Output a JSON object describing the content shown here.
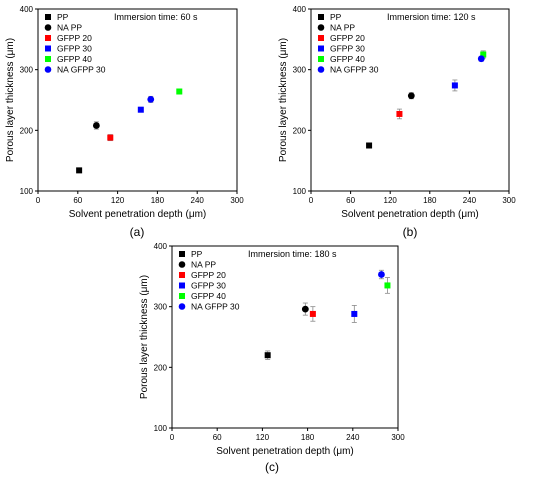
{
  "chart_data": [
    {
      "type": "scatter",
      "panel_label": "(a)",
      "annotation": "Immersion time: 60 s",
      "xlabel": "Solvent penetration depth (μm)",
      "ylabel": "Porous layer thickness (μm)",
      "xlim": [
        0,
        300
      ],
      "ylim": [
        100,
        400
      ],
      "xticks": [
        "0",
        "60",
        "120",
        "180",
        "240",
        "300"
      ],
      "yticks": [
        "100",
        "200",
        "300",
        "400"
      ],
      "grid": false,
      "legend_position": "top-left",
      "series": [
        {
          "name": "PP",
          "color": "#000000",
          "marker": "square",
          "points": [
            {
              "x": 62,
              "y": 134,
              "err": 3
            }
          ]
        },
        {
          "name": "NA PP",
          "color": "#000000",
          "marker": "circle",
          "points": [
            {
              "x": 88,
              "y": 208,
              "err": 6
            }
          ]
        },
        {
          "name": "GFPP 20",
          "color": "#ff0000",
          "marker": "square",
          "points": [
            {
              "x": 109,
              "y": 188,
              "err": 5
            }
          ]
        },
        {
          "name": "GFPP 30",
          "color": "#0000ff",
          "marker": "square",
          "points": [
            {
              "x": 155,
              "y": 234,
              "err": 4
            }
          ]
        },
        {
          "name": "GFPP 40",
          "color": "#00ff00",
          "marker": "square",
          "points": [
            {
              "x": 213,
              "y": 264,
              "err": 3
            }
          ]
        },
        {
          "name": "NA GFPP 30",
          "color": "#0000ff",
          "marker": "circle",
          "points": [
            {
              "x": 170,
              "y": 251,
              "err": 5
            }
          ]
        }
      ]
    },
    {
      "type": "scatter",
      "panel_label": "(b)",
      "annotation": "Immersion time: 120 s",
      "xlabel": "Solvent penetration depth (μm)",
      "ylabel": "Porous layer thickness (μm)",
      "xlim": [
        0,
        300
      ],
      "ylim": [
        100,
        400
      ],
      "xticks": [
        "0",
        "60",
        "120",
        "180",
        "240",
        "300"
      ],
      "yticks": [
        "100",
        "200",
        "300",
        "400"
      ],
      "grid": false,
      "legend_position": "top-left",
      "series": [
        {
          "name": "PP",
          "color": "#000000",
          "marker": "square",
          "points": [
            {
              "x": 88,
              "y": 175,
              "err": 3
            }
          ]
        },
        {
          "name": "NA PP",
          "color": "#000000",
          "marker": "circle",
          "points": [
            {
              "x": 152,
              "y": 257,
              "err": 5
            }
          ]
        },
        {
          "name": "GFPP 20",
          "color": "#ff0000",
          "marker": "square",
          "points": [
            {
              "x": 134,
              "y": 227,
              "err": 8
            }
          ]
        },
        {
          "name": "GFPP 30",
          "color": "#0000ff",
          "marker": "square",
          "points": [
            {
              "x": 218,
              "y": 274,
              "err": 9
            }
          ]
        },
        {
          "name": "GFPP 40",
          "color": "#00ff00",
          "marker": "square",
          "points": [
            {
              "x": 261,
              "y": 325,
              "err": 6
            }
          ]
        },
        {
          "name": "NA GFPP 30",
          "color": "#0000ff",
          "marker": "circle",
          "points": [
            {
              "x": 258,
              "y": 318,
              "err": 4
            }
          ]
        }
      ]
    },
    {
      "type": "scatter",
      "panel_label": "(c)",
      "annotation": "Immersion time: 180 s",
      "xlabel": "Solvent penetration depth (μm)",
      "ylabel": "Porous layer thickness (μm)",
      "xlim": [
        0,
        300
      ],
      "ylim": [
        100,
        400
      ],
      "xticks": [
        "0",
        "60",
        "120",
        "180",
        "240",
        "300"
      ],
      "yticks": [
        "100",
        "200",
        "300",
        "400"
      ],
      "grid": false,
      "legend_position": "top-left",
      "series": [
        {
          "name": "PP",
          "color": "#000000",
          "marker": "square",
          "points": [
            {
              "x": 127,
              "y": 220,
              "err": 7
            }
          ]
        },
        {
          "name": "NA PP",
          "color": "#000000",
          "marker": "circle",
          "points": [
            {
              "x": 177,
              "y": 296,
              "err": 10
            }
          ]
        },
        {
          "name": "GFPP 20",
          "color": "#ff0000",
          "marker": "square",
          "points": [
            {
              "x": 187,
              "y": 288,
              "err": 12
            }
          ]
        },
        {
          "name": "GFPP 30",
          "color": "#0000ff",
          "marker": "square",
          "points": [
            {
              "x": 242,
              "y": 288,
              "err": 14
            }
          ]
        },
        {
          "name": "GFPP 40",
          "color": "#00ff00",
          "marker": "square",
          "points": [
            {
              "x": 286,
              "y": 335,
              "err": 13
            }
          ]
        },
        {
          "name": "NA GFPP 30",
          "color": "#0000ff",
          "marker": "circle",
          "points": [
            {
              "x": 278,
              "y": 353,
              "err": 7
            }
          ]
        }
      ]
    }
  ]
}
